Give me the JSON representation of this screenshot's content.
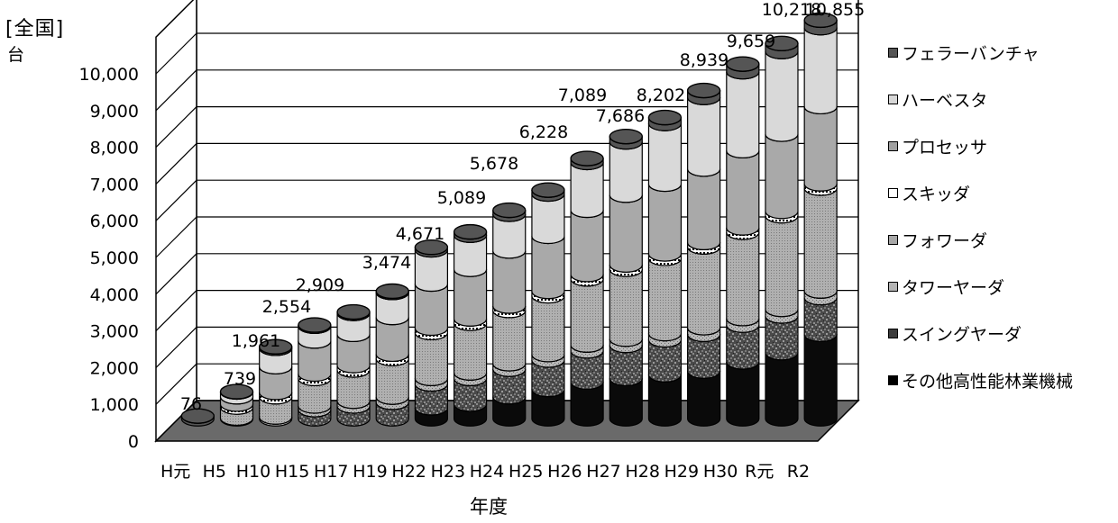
{
  "chart_data": {
    "type": "bar",
    "stacked": true,
    "unit_line1": "[全国]",
    "unit_line2": "台",
    "xlabel": "年度",
    "ylabel": "",
    "ylim": [
      0,
      11000
    ],
    "y_ticks": [
      "0",
      "1,000",
      "2,000",
      "3,000",
      "4,000",
      "5,000",
      "6,000",
      "7,000",
      "8,000",
      "9,000",
      "10,000"
    ],
    "y_tick_values": [
      0,
      1000,
      2000,
      3000,
      4000,
      5000,
      6000,
      7000,
      8000,
      9000,
      10000
    ],
    "grid": true,
    "legend_position": "right",
    "categories": [
      "H元",
      "H5",
      "H10",
      "H15",
      "H17",
      "H19",
      "H22",
      "H23",
      "H24",
      "H25",
      "H26",
      "H27",
      "H28",
      "H29",
      "H30",
      "R元",
      "R2"
    ],
    "totals": [
      76,
      739,
      1961,
      2554,
      2909,
      3474,
      4671,
      5089,
      5678,
      6228,
      7089,
      7686,
      8202,
      8939,
      9659,
      10218,
      10855
    ],
    "total_labels": [
      "76",
      "739",
      "1,961",
      "2,554",
      "2,909",
      "3,474",
      "4,671",
      "5,089",
      "5,678",
      "6,228",
      "7,089",
      "7,686",
      "8,202",
      "8,939",
      "9,659",
      "10,218",
      "10,855"
    ],
    "series": [
      {
        "name": "その他高性能林業機械",
        "color": "#000000",
        "values": [
          0,
          0,
          0,
          0,
          0,
          0,
          300,
          400,
          600,
          800,
          1000,
          1100,
          1200,
          1300,
          1550,
          1800,
          2300
        ]
      },
      {
        "name": "スイングヤーダ",
        "color": "#3c3c3c",
        "values": [
          0,
          0,
          0,
          250,
          350,
          450,
          650,
          700,
          750,
          800,
          850,
          900,
          950,
          1000,
          1000,
          1000,
          1000
        ]
      },
      {
        "name": "タワーヤーダ",
        "color": "#b4b4b4",
        "values": [
          0,
          20,
          50,
          100,
          130,
          140,
          150,
          150,
          150,
          150,
          160,
          170,
          170,
          180,
          180,
          180,
          180
        ]
      },
      {
        "name": "フォワーダ",
        "color": "#a8a8a8",
        "values": [
          0,
          300,
          550,
          750,
          850,
          1050,
          1250,
          1350,
          1450,
          1600,
          1800,
          1900,
          2050,
          2200,
          2350,
          2550,
          2800
        ]
      },
      {
        "name": "スキッダ",
        "color": "#ffffff",
        "values": [
          0,
          80,
          120,
          120,
          120,
          120,
          120,
          120,
          120,
          120,
          120,
          120,
          120,
          120,
          120,
          120,
          120
        ]
      },
      {
        "name": "プロセッサ",
        "color": "#a0a0a0",
        "values": [
          0,
          200,
          700,
          900,
          850,
          1000,
          1200,
          1350,
          1500,
          1500,
          1750,
          1900,
          1900,
          2000,
          2100,
          2100,
          2100
        ]
      },
      {
        "name": "ハーベスタ",
        "color": "#d7d7d7",
        "values": [
          0,
          130,
          500,
          400,
          570,
          680,
          930,
          930,
          1000,
          1150,
          1300,
          1450,
          1650,
          1950,
          2150,
          2250,
          2150
        ]
      },
      {
        "name": "フェラーバンチャ",
        "color": "#555555",
        "values": [
          76,
          9,
          41,
          34,
          39,
          34,
          71,
          89,
          108,
          108,
          109,
          146,
          162,
          189,
          209,
          218,
          205
        ]
      }
    ]
  }
}
